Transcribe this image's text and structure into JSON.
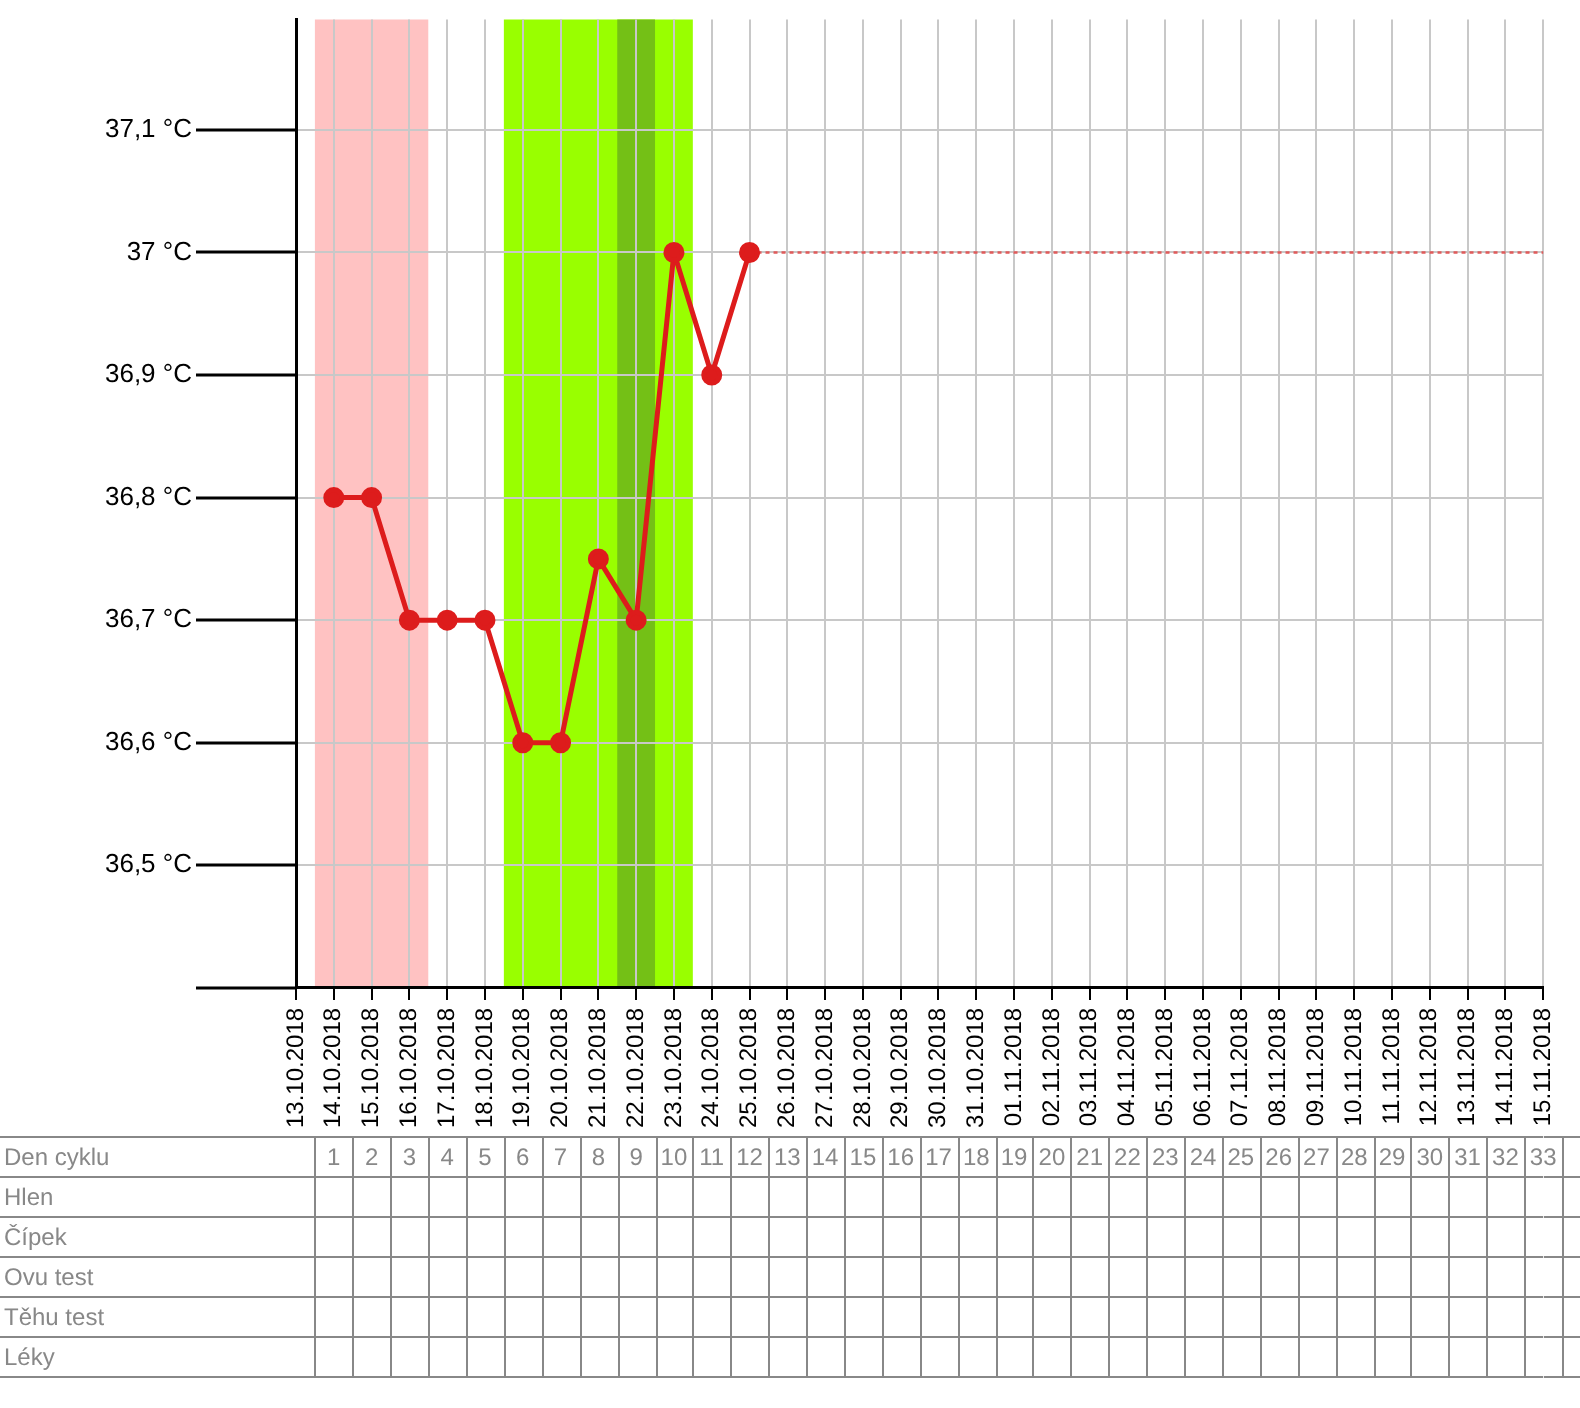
{
  "chart_data": {
    "type": "line",
    "categories": [
      "13.10.2018",
      "14.10.2018",
      "15.10.2018",
      "16.10.2018",
      "17.10.2018",
      "18.10.2018",
      "19.10.2018",
      "20.10.2018",
      "21.10.2018",
      "22.10.2018",
      "23.10.2018",
      "24.10.2018",
      "25.10.2018",
      "26.10.2018",
      "27.10.2018",
      "28.10.2018",
      "29.10.2018",
      "30.10.2018",
      "31.10.2018",
      "01.11.2018",
      "02.11.2018",
      "03.11.2018",
      "04.11.2018",
      "05.11.2018",
      "06.11.2018",
      "07.11.2018",
      "08.11.2018",
      "09.11.2018",
      "10.11.2018",
      "11.11.2018",
      "12.11.2018",
      "13.11.2018",
      "14.11.2018",
      "15.11.2018"
    ],
    "series": [
      {
        "color": "#dd1c1c",
        "values": [
          null,
          36.8,
          36.8,
          36.7,
          36.7,
          36.7,
          36.6,
          36.6,
          36.75,
          36.7,
          37,
          36.9,
          37,
          null,
          null,
          null,
          null,
          null,
          null,
          null,
          null,
          null,
          null,
          null,
          null,
          null,
          null,
          null,
          null,
          null,
          null,
          null,
          null,
          null
        ]
      },
      {
        "color": "#e05a5a",
        "marker": "none",
        "line_style": "dotted",
        "values": [
          null,
          null,
          null,
          null,
          null,
          null,
          null,
          null,
          null,
          null,
          null,
          null,
          37,
          37,
          37,
          37,
          37,
          37,
          37,
          37,
          37,
          37,
          37,
          37,
          37,
          37,
          37,
          37,
          37,
          37,
          37,
          37,
          37,
          37
        ]
      }
    ],
    "ylim": [
      36.4,
      37.19
    ],
    "yticks": [
      {
        "value": 36.4,
        "label": null
      },
      {
        "value": 36.5,
        "label": "36,5 °C"
      },
      {
        "value": 36.6,
        "label": "36,6 °C"
      },
      {
        "value": 36.7,
        "label": "36,7 °C"
      },
      {
        "value": 36.8,
        "label": "36,8 °C"
      },
      {
        "value": 36.9,
        "label": "36,9 °C"
      },
      {
        "value": 37,
        "label": "37 °C"
      },
      {
        "value": 37.1,
        "label": "37,1 °C"
      }
    ],
    "x2label": "Den cyklu",
    "x2lim": [
      0,
      33
    ],
    "x2ticks": [
      1,
      2,
      3,
      4,
      5,
      6,
      7,
      8,
      9,
      10,
      11,
      12,
      13,
      14,
      15,
      16,
      17,
      18,
      19,
      20,
      21,
      22,
      23,
      24,
      25,
      26,
      27,
      28,
      29,
      30,
      31,
      32,
      33
    ],
    "annotations": [
      "Hlen",
      "Čípek",
      "Ovu test",
      "Těhu test",
      "Léky"
    ],
    "grid": true,
    "legend": false,
    "marker": "circle",
    "bands": [
      {
        "axis": "x",
        "from": "14.10.2018",
        "to": "16.10.2018",
        "color": "#ffc2c2"
      },
      {
        "axis": "x",
        "from": "19.10.2018",
        "to": "23.10.2018",
        "color": "#99ff00"
      },
      {
        "axis": "x",
        "from": "22.10.2018",
        "to": "22.10.2018",
        "color": "#74c016"
      }
    ]
  }
}
